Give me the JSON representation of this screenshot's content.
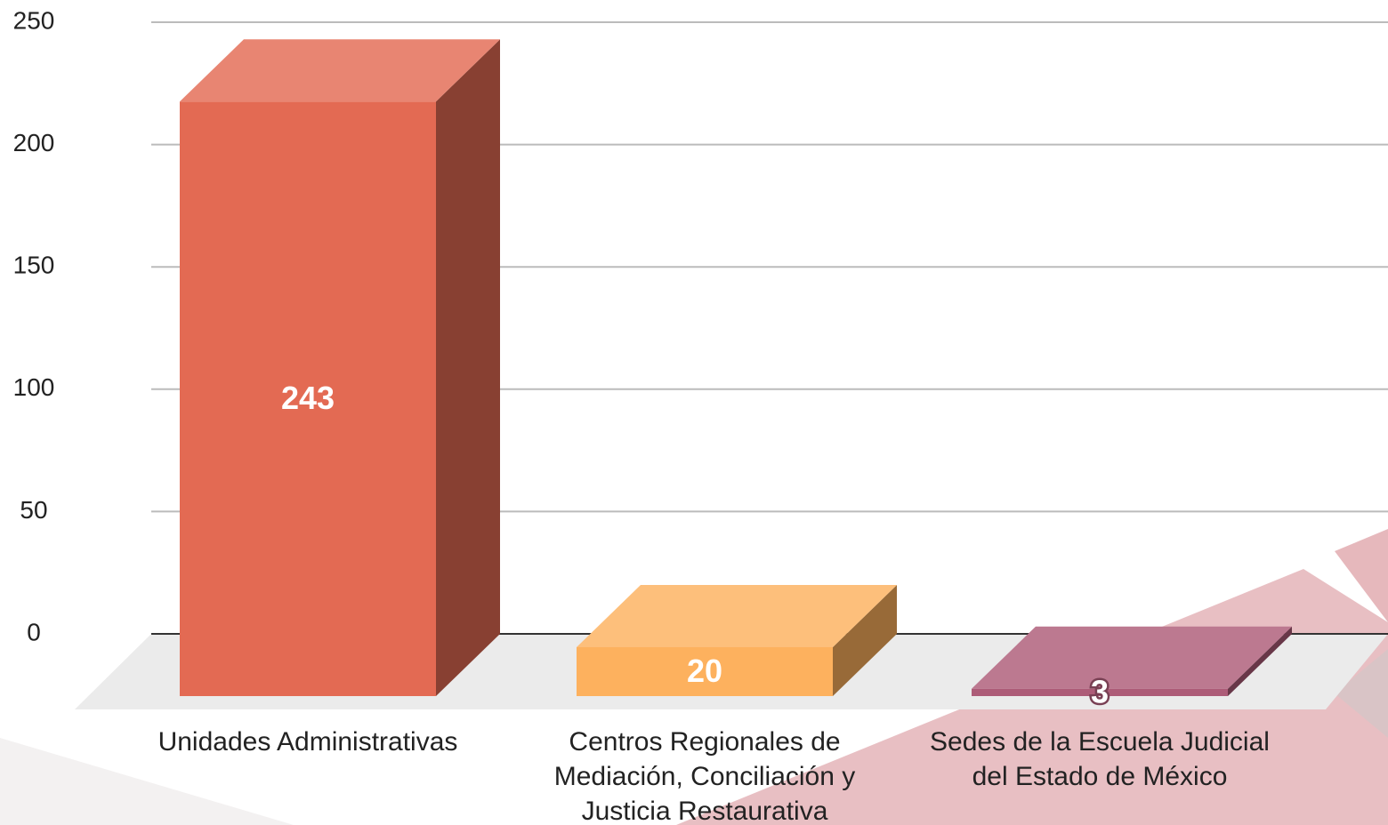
{
  "chart_data": {
    "type": "bar3d",
    "categories": [
      "Unidades Administrativas",
      "Centros Regionales de Mediación, Conciliación y Justicia Restaurativa",
      "Sedes de la Escuela Judicial del Estado de México"
    ],
    "values": [
      243,
      20,
      3
    ],
    "colors": [
      "#e36a53",
      "#fdb15e",
      "#ad5c78"
    ],
    "ylim": [
      0,
      250
    ],
    "yticks": [
      0,
      50,
      100,
      150,
      200,
      250
    ],
    "grid": true
  }
}
